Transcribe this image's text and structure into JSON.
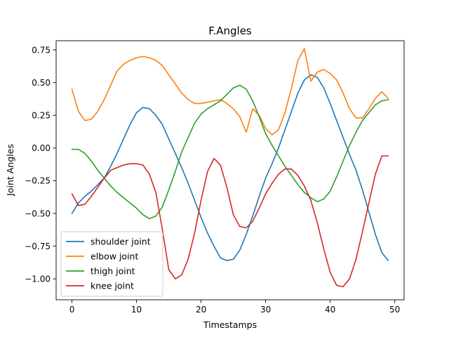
{
  "chart_data": {
    "type": "line",
    "title": "F.Angles",
    "xlabel": "Timestamps",
    "ylabel": "Joint Angles",
    "xlim": [
      -2.45,
      51.45
    ],
    "ylim": [
      -1.16,
      0.82
    ],
    "xticks": [
      0,
      10,
      20,
      30,
      40,
      50
    ],
    "yticks": [
      -1.0,
      -0.75,
      -0.5,
      -0.25,
      0.0,
      0.25,
      0.5,
      0.75
    ],
    "ytick_labels": [
      "−1.00",
      "−0.75",
      "−0.50",
      "−0.25",
      "0.00",
      "0.25",
      "0.50",
      "0.75"
    ],
    "grid": false,
    "legend_position": "lower-left",
    "series": [
      {
        "name": "shoulder joint",
        "color": "#1f77b4",
        "x": [
          0,
          1,
          2,
          3,
          4,
          5,
          6,
          7,
          8,
          9,
          10,
          11,
          12,
          13,
          14,
          15,
          16,
          17,
          18,
          19,
          20,
          21,
          22,
          23,
          24,
          25,
          26,
          27,
          28,
          29,
          30,
          31,
          32,
          33,
          34,
          35,
          36,
          37,
          38,
          39,
          40,
          41,
          42,
          43,
          44,
          45,
          46,
          47,
          48,
          49
        ],
        "values": [
          -0.5,
          -0.42,
          -0.37,
          -0.33,
          -0.28,
          -0.23,
          -0.14,
          -0.04,
          0.07,
          0.18,
          0.27,
          0.31,
          0.3,
          0.25,
          0.18,
          0.07,
          -0.04,
          -0.15,
          -0.27,
          -0.4,
          -0.53,
          -0.65,
          -0.75,
          -0.84,
          -0.86,
          -0.85,
          -0.78,
          -0.66,
          -0.52,
          -0.37,
          -0.23,
          -0.12,
          0.0,
          0.14,
          0.28,
          0.42,
          0.52,
          0.56,
          0.54,
          0.46,
          0.34,
          0.21,
          0.08,
          -0.05,
          -0.17,
          -0.32,
          -0.49,
          -0.66,
          -0.8,
          -0.86
        ]
      },
      {
        "name": "elbow joint",
        "color": "#ff7f0e",
        "x": [
          0,
          1,
          2,
          3,
          4,
          5,
          6,
          7,
          8,
          9,
          10,
          11,
          12,
          13,
          14,
          15,
          16,
          17,
          18,
          19,
          20,
          21,
          22,
          23,
          24,
          25,
          26,
          27,
          28,
          29,
          30,
          31,
          32,
          33,
          34,
          35,
          36,
          37,
          38,
          39,
          40,
          41,
          42,
          43,
          44,
          45,
          46,
          47,
          48,
          49
        ],
        "values": [
          0.45,
          0.28,
          0.21,
          0.22,
          0.28,
          0.37,
          0.48,
          0.59,
          0.64,
          0.67,
          0.69,
          0.7,
          0.69,
          0.67,
          0.63,
          0.56,
          0.49,
          0.42,
          0.37,
          0.34,
          0.34,
          0.35,
          0.36,
          0.37,
          0.34,
          0.3,
          0.24,
          0.12,
          0.3,
          0.25,
          0.15,
          0.1,
          0.14,
          0.27,
          0.46,
          0.67,
          0.76,
          0.51,
          0.58,
          0.6,
          0.57,
          0.52,
          0.42,
          0.3,
          0.23,
          0.23,
          0.3,
          0.38,
          0.43,
          0.38
        ]
      },
      {
        "name": "thigh joint",
        "color": "#2ca02c",
        "x": [
          0,
          1,
          2,
          3,
          4,
          5,
          6,
          7,
          8,
          9,
          10,
          11,
          12,
          13,
          14,
          15,
          16,
          17,
          18,
          19,
          20,
          21,
          22,
          23,
          24,
          25,
          26,
          27,
          28,
          29,
          30,
          31,
          32,
          33,
          34,
          35,
          36,
          37,
          38,
          39,
          40,
          41,
          42,
          43,
          44,
          45,
          46,
          47,
          48,
          49
        ],
        "values": [
          -0.01,
          -0.01,
          -0.04,
          -0.1,
          -0.17,
          -0.23,
          -0.29,
          -0.34,
          -0.38,
          -0.42,
          -0.46,
          -0.51,
          -0.54,
          -0.52,
          -0.45,
          -0.32,
          -0.18,
          -0.03,
          0.08,
          0.19,
          0.26,
          0.3,
          0.33,
          0.36,
          0.41,
          0.46,
          0.48,
          0.45,
          0.36,
          0.24,
          0.11,
          0.02,
          -0.06,
          -0.14,
          -0.21,
          -0.28,
          -0.34,
          -0.38,
          -0.41,
          -0.39,
          -0.33,
          -0.22,
          -0.1,
          0.02,
          0.12,
          0.21,
          0.27,
          0.33,
          0.36,
          0.37
        ]
      },
      {
        "name": "knee joint",
        "color": "#d62728",
        "x": [
          0,
          1,
          2,
          3,
          4,
          5,
          6,
          7,
          8,
          9,
          10,
          11,
          12,
          13,
          14,
          15,
          16,
          17,
          18,
          19,
          20,
          21,
          22,
          23,
          24,
          25,
          26,
          27,
          28,
          29,
          30,
          31,
          32,
          33,
          34,
          35,
          36,
          37,
          38,
          39,
          40,
          41,
          42,
          43,
          44,
          45,
          46,
          47,
          48,
          49
        ],
        "values": [
          -0.35,
          -0.44,
          -0.43,
          -0.37,
          -0.3,
          -0.23,
          -0.17,
          -0.15,
          -0.13,
          -0.12,
          -0.12,
          -0.13,
          -0.2,
          -0.34,
          -0.62,
          -0.93,
          -1.0,
          -0.97,
          -0.85,
          -0.65,
          -0.4,
          -0.18,
          -0.08,
          -0.13,
          -0.3,
          -0.51,
          -0.6,
          -0.61,
          -0.56,
          -0.46,
          -0.35,
          -0.27,
          -0.2,
          -0.16,
          -0.16,
          -0.21,
          -0.29,
          -0.4,
          -0.57,
          -0.77,
          -0.95,
          -1.05,
          -1.06,
          -1.0,
          -0.85,
          -0.64,
          -0.42,
          -0.2,
          -0.06,
          -0.06
        ]
      }
    ]
  }
}
